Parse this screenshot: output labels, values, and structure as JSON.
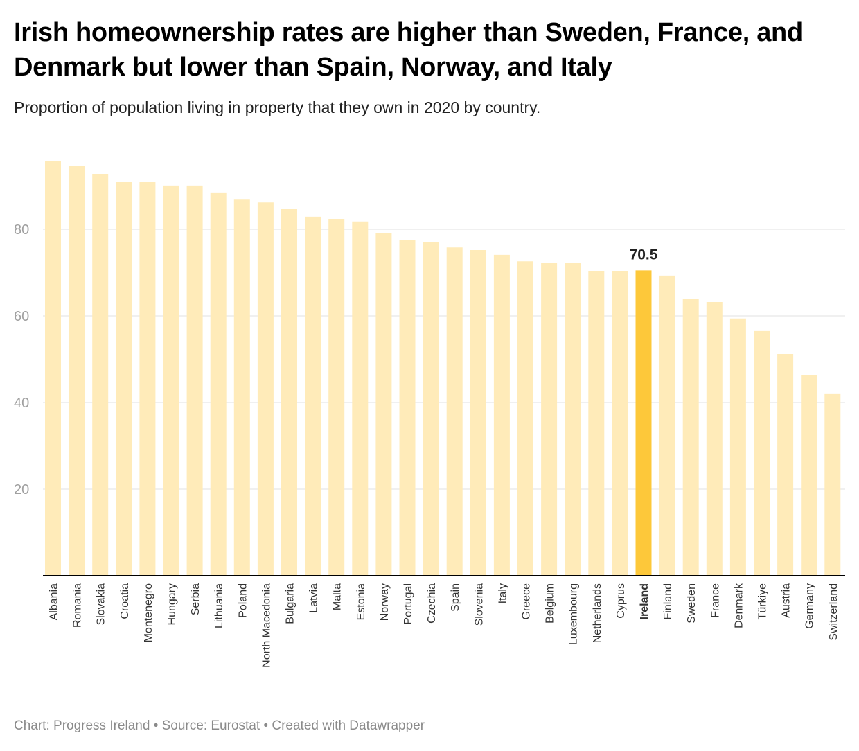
{
  "title": "Irish homeownership rates are higher than Sweden, France, and Denmark but lower than Spain, Norway, and Italy",
  "subtitle": "Proportion of population living in property that they own in 2020 by country.",
  "footer": "Chart: Progress Ireland • Source: Eurostat • Created with Datawrapper",
  "colors": {
    "bar": "#ffebb9",
    "highlight": "#fdc83a",
    "grid": "#e2e2e2",
    "axis": "#000000",
    "tick": "#a0a0a0"
  },
  "chart_data": {
    "type": "bar",
    "title": "Irish homeownership rates are higher than Sweden, France, and Denmark but lower than Spain, Norway, and Italy",
    "xlabel": "",
    "ylabel": "",
    "ylim": [
      0,
      96
    ],
    "yticks": [
      20,
      40,
      60,
      80
    ],
    "grid": true,
    "highlight": "Ireland",
    "highlight_label": "70.5",
    "categories": [
      "Albania",
      "Romania",
      "Slovakia",
      "Croatia",
      "Montenegro",
      "Hungary",
      "Serbia",
      "Lithuania",
      "Poland",
      "North Macedonia",
      "Bulgaria",
      "Latvia",
      "Malta",
      "Estonia",
      "Norway",
      "Portugal",
      "Czechia",
      "Spain",
      "Slovenia",
      "Italy",
      "Greece",
      "Belgium",
      "Luxembourg",
      "Netherlands",
      "Cyprus",
      "Ireland",
      "Finland",
      "Sweden",
      "France",
      "Denmark",
      "Türkiye",
      "Austria",
      "Germany",
      "Switzerland"
    ],
    "values": [
      95.8,
      94.6,
      92.8,
      90.9,
      90.9,
      90.1,
      90.1,
      88.5,
      87.0,
      86.2,
      84.8,
      82.9,
      82.4,
      81.8,
      79.2,
      77.6,
      77.0,
      75.8,
      75.2,
      74.1,
      72.6,
      72.2,
      72.2,
      70.4,
      70.4,
      70.5,
      69.3,
      64.0,
      63.2,
      59.4,
      56.5,
      51.2,
      46.4,
      42.1
    ]
  }
}
